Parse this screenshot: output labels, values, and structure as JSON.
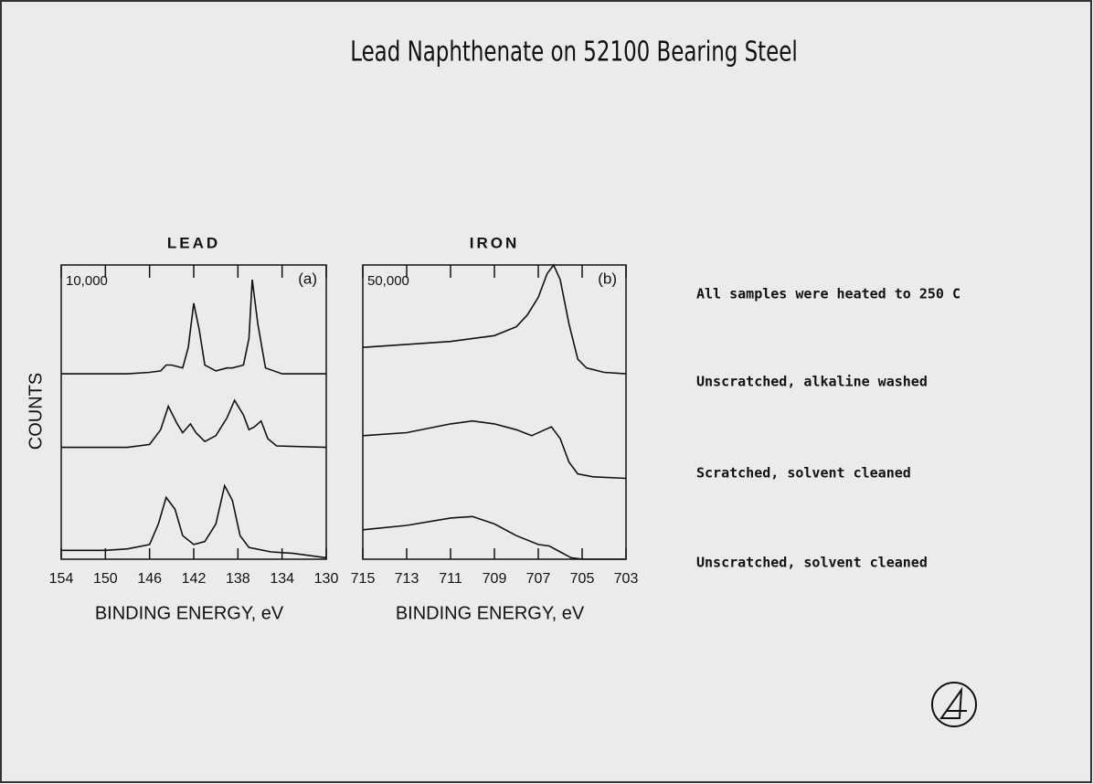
{
  "title": "Lead Naphthenate on 52100 Bearing Steel",
  "chart_data": [
    {
      "type": "line",
      "title": "LEAD",
      "scale_label": "10,000",
      "panel_label": "(a)",
      "xlabel": "BINDING ENERGY, eV",
      "ylabel": "COUNTS",
      "xlim": [
        154,
        130
      ],
      "xticks": [
        154,
        150,
        146,
        142,
        138,
        134,
        130
      ],
      "ylim": [
        0,
        100
      ],
      "color": "#111111",
      "series": [
        {
          "x": [
            154,
            148,
            146,
            145,
            144.5,
            144,
            143,
            142.5,
            142,
            141.5,
            141,
            140,
            139,
            138.5,
            137.5,
            137,
            136.7,
            136.2,
            135.5,
            134,
            130
          ],
          "values": [
            63,
            63,
            63.5,
            64,
            66,
            66,
            65,
            72,
            87,
            78,
            66,
            64,
            65,
            65,
            66,
            75,
            95,
            80,
            65,
            63,
            63
          ]
        },
        {
          "x": [
            154,
            148,
            146,
            145,
            144.3,
            143.5,
            143,
            142.3,
            141.8,
            141,
            140,
            139,
            138.3,
            137.5,
            137,
            136.5,
            135.9,
            135.3,
            134.5,
            130
          ],
          "values": [
            38,
            38,
            39,
            44,
            52,
            46,
            43,
            46,
            43,
            40,
            42,
            48,
            54,
            49,
            44,
            45,
            47,
            41,
            38.5,
            38
          ]
        },
        {
          "x": [
            154,
            150,
            148,
            146,
            145.2,
            144.5,
            143.7,
            143,
            142,
            141,
            140,
            139.2,
            138.5,
            137.8,
            137,
            135,
            133,
            132,
            130
          ],
          "values": [
            3,
            3,
            3.5,
            5,
            12,
            21,
            17,
            8,
            5,
            6,
            12,
            25,
            20,
            8,
            4,
            2.5,
            2,
            1.5,
            0.5
          ]
        }
      ]
    },
    {
      "type": "line",
      "title": "IRON",
      "scale_label": "50,000",
      "panel_label": "(b)",
      "xlabel": "BINDING ENERGY, eV",
      "xlim": [
        715,
        703
      ],
      "xticks": [
        715,
        713,
        711,
        709,
        707,
        705,
        703
      ],
      "ylim": [
        0,
        100
      ],
      "color": "#111111",
      "series": [
        {
          "x": [
            715,
            713,
            711,
            709,
            708,
            707.5,
            707,
            706.6,
            706.3,
            706,
            705.6,
            705.2,
            704.8,
            704,
            703
          ],
          "values": [
            72,
            73,
            74,
            76,
            79,
            83,
            89,
            97,
            100,
            95,
            80,
            68,
            65,
            63.5,
            63
          ]
        },
        {
          "x": [
            715,
            713,
            711,
            710,
            709,
            708,
            707.3,
            706.7,
            706.4,
            706,
            705.6,
            705.2,
            704.5,
            703
          ],
          "values": [
            42,
            43,
            46,
            47,
            46,
            44,
            42,
            44,
            45,
            41,
            33,
            29,
            28,
            27.5
          ]
        },
        {
          "x": [
            715,
            713,
            711,
            710,
            709,
            708,
            707,
            706.5,
            706,
            705.5,
            705,
            703
          ],
          "values": [
            10,
            11.5,
            14,
            14.5,
            12,
            8,
            5,
            4.5,
            2.5,
            0.5,
            0,
            0
          ]
        }
      ]
    }
  ],
  "notes": [
    "All samples were heated to 250 C",
    "Unscratched, alkaline washed",
    "Scratched, solvent cleaned",
    "Unscratched, solvent cleaned"
  ]
}
